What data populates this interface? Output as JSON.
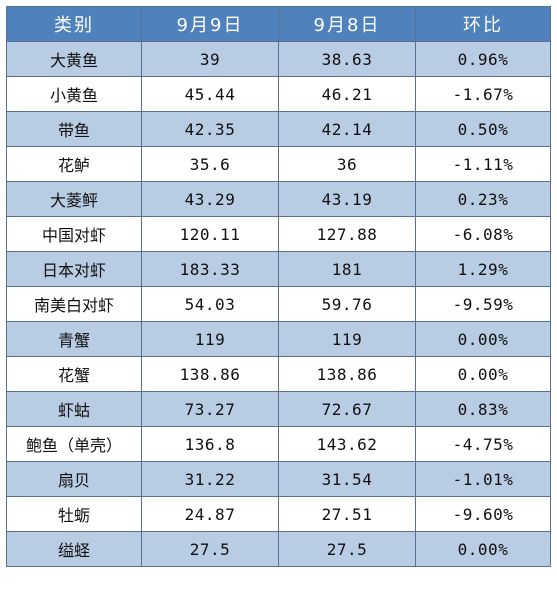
{
  "table": {
    "headers": [
      "类别",
      "9月9日",
      "9月8日",
      "环比"
    ],
    "rows": [
      {
        "category": "大黄鱼",
        "sep9": "39",
        "sep8": "38.63",
        "change": "0.96%"
      },
      {
        "category": "小黄鱼",
        "sep9": "45.44",
        "sep8": "46.21",
        "change": "-1.67%"
      },
      {
        "category": "带鱼",
        "sep9": "42.35",
        "sep8": "42.14",
        "change": "0.50%"
      },
      {
        "category": "花鲈",
        "sep9": "35.6",
        "sep8": "36",
        "change": "-1.11%"
      },
      {
        "category": "大菱鲆",
        "sep9": "43.29",
        "sep8": "43.19",
        "change": "0.23%"
      },
      {
        "category": "中国对虾",
        "sep9": "120.11",
        "sep8": "127.88",
        "change": "-6.08%"
      },
      {
        "category": "日本对虾",
        "sep9": "183.33",
        "sep8": "181",
        "change": "1.29%"
      },
      {
        "category": "南美白对虾",
        "sep9": "54.03",
        "sep8": "59.76",
        "change": "-9.59%"
      },
      {
        "category": "青蟹",
        "sep9": "119",
        "sep8": "119",
        "change": "0.00%"
      },
      {
        "category": "花蟹",
        "sep9": "138.86",
        "sep8": "138.86",
        "change": "0.00%"
      },
      {
        "category": "虾蛄",
        "sep9": "73.27",
        "sep8": "72.67",
        "change": "0.83%"
      },
      {
        "category": "鲍鱼（单壳）",
        "sep9": "136.8",
        "sep8": "143.62",
        "change": "-4.75%"
      },
      {
        "category": "扇贝",
        "sep9": "31.22",
        "sep8": "31.54",
        "change": "-1.01%"
      },
      {
        "category": "牡蛎",
        "sep9": "24.87",
        "sep8": "27.51",
        "change": "-9.60%"
      },
      {
        "category": "缢蛏",
        "sep9": "27.5",
        "sep8": "27.5",
        "change": "0.00%"
      }
    ]
  },
  "colors": {
    "header_bg": "#4f81bd",
    "band_bg": "#b8cce4",
    "plain_bg": "#ffffff",
    "border": "#5b6f90"
  }
}
